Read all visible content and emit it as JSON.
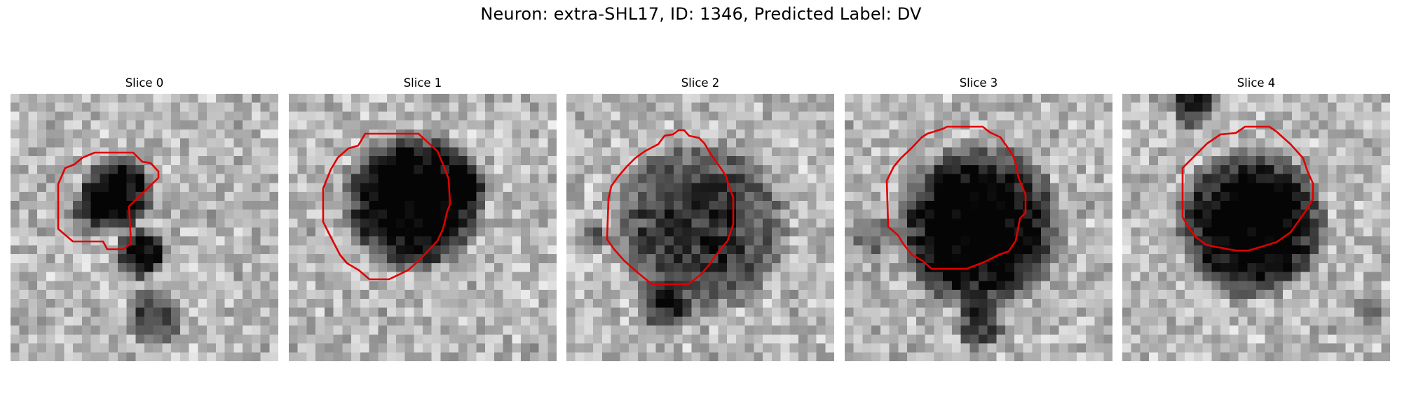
{
  "figure": {
    "title": "Neuron: extra-SHL17, ID: 1346, Predicted Label: DV"
  },
  "slices": [
    {
      "title": "Slice 0"
    },
    {
      "title": "Slice 1"
    },
    {
      "title": "Slice 2"
    },
    {
      "title": "Slice 3"
    },
    {
      "title": "Slice 4"
    }
  ],
  "colors": {
    "contour": "#e00000",
    "colormap": "gray"
  }
}
